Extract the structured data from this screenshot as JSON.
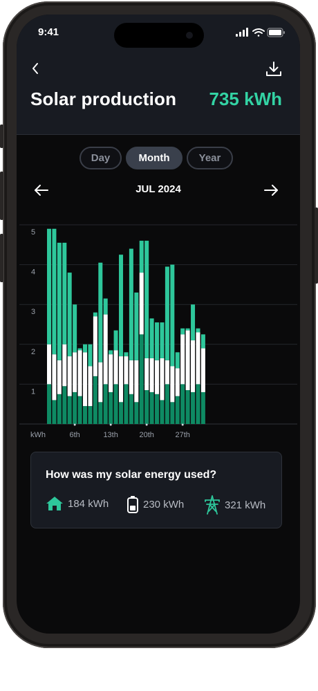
{
  "status": {
    "time": "9:41"
  },
  "header": {
    "title": "Solar production",
    "total": "735 kWh"
  },
  "period_tabs": [
    {
      "label": "Day",
      "active": false
    },
    {
      "label": "Month",
      "active": true
    },
    {
      "label": "Year",
      "active": false
    }
  ],
  "month_nav": {
    "label": "JUL 2024"
  },
  "chart_data": {
    "type": "bar",
    "stacked": true,
    "ylabel": "kWh",
    "ylim": [
      0,
      5
    ],
    "yticks": [
      1,
      2,
      3,
      4,
      5
    ],
    "x_tick_labels": [
      {
        "day": 6,
        "label": "6th"
      },
      {
        "day": 13,
        "label": "13th"
      },
      {
        "day": 20,
        "label": "20th"
      },
      {
        "day": 27,
        "label": "27th"
      }
    ],
    "categories": [
      1,
      2,
      3,
      4,
      5,
      6,
      7,
      8,
      9,
      10,
      11,
      12,
      13,
      14,
      15,
      16,
      17,
      18,
      19,
      20,
      21,
      22,
      23,
      24,
      25,
      26,
      27,
      28,
      29,
      30,
      31
    ],
    "series": [
      {
        "color": "#0e8a63",
        "values": [
          1.0,
          0.6,
          0.75,
          0.95,
          0.7,
          0.8,
          0.7,
          0.45,
          0.45,
          1.2,
          0.55,
          1.0,
          0.8,
          1.0,
          0.55,
          1.0,
          0.75,
          0.55,
          2.25,
          0.85,
          0.8,
          0.75,
          0.6,
          1.0,
          0.55,
          0.7,
          1.0,
          0.85,
          0.8,
          1.0,
          0.8
        ]
      },
      {
        "color": "#ffffff",
        "values": [
          1.0,
          1.15,
          0.85,
          1.05,
          1.0,
          1.0,
          1.15,
          1.35,
          1.0,
          1.5,
          1.0,
          1.75,
          0.95,
          0.85,
          1.15,
          0.7,
          0.85,
          1.05,
          1.55,
          0.8,
          0.85,
          0.85,
          1.05,
          0.6,
          0.9,
          0.7,
          1.25,
          1.5,
          1.3,
          1.3,
          1.1
        ]
      },
      {
        "color": "#2ec79b",
        "values": [
          2.9,
          3.15,
          2.95,
          2.55,
          2.1,
          1.2,
          0.05,
          0.2,
          0.55,
          0.1,
          2.5,
          0.4,
          0.1,
          0.5,
          2.55,
          0.1,
          2.8,
          1.7,
          0.8,
          2.95,
          1.0,
          0.95,
          0.9,
          2.35,
          2.55,
          0.4,
          0.15,
          0.05,
          0.9,
          0.1,
          0.35
        ]
      }
    ]
  },
  "usage_card": {
    "title": "How was my solar energy used?",
    "items": [
      {
        "icon": "home-icon",
        "value": "184 kWh",
        "color": "#2ec79b"
      },
      {
        "icon": "battery-icon",
        "value": "230 kWh",
        "color": "#ffffff"
      },
      {
        "icon": "grid-tower-icon",
        "value": "321 kWh",
        "color": "#2ec79b"
      }
    ]
  }
}
